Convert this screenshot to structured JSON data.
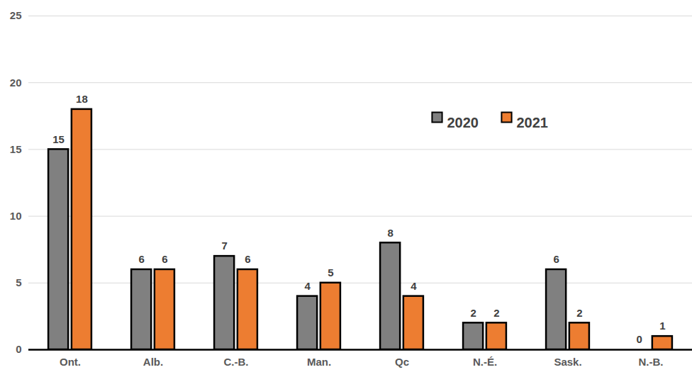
{
  "chart_data": {
    "type": "bar",
    "categories": [
      "Ont.",
      "Alb.",
      "C.-B.",
      "Man.",
      "Qc",
      "N.-É.",
      "Sask.",
      "N.-B."
    ],
    "series": [
      {
        "name": "2020",
        "color": "#808080",
        "values": [
          15,
          6,
          7,
          4,
          8,
          2,
          6,
          0
        ]
      },
      {
        "name": "2021",
        "color": "#ED7D31",
        "values": [
          18,
          6,
          6,
          5,
          4,
          2,
          2,
          1
        ]
      }
    ],
    "ylim": [
      0,
      25
    ],
    "yticks": [
      0,
      5,
      10,
      15,
      20,
      25
    ],
    "grid": true,
    "data_labels": true,
    "legend": "top right"
  }
}
